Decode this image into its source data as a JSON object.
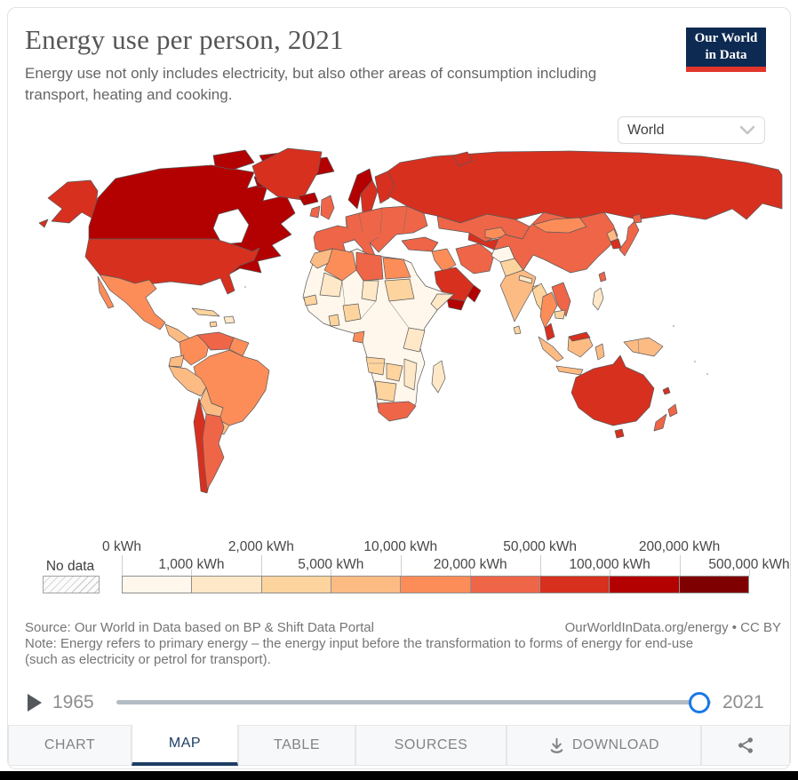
{
  "header": {
    "title": "Energy use per person, 2021",
    "subtitle": "Energy use not only includes electricity, but also other areas of consumption including transport, heating and cooking.",
    "logo": {
      "line1": "Our World",
      "line2": "in Data"
    }
  },
  "brand_colors": {
    "logo_navy": "#0d2a52",
    "logo_red": "#e0362c",
    "active_tab_navy": "#1d3d63",
    "slider_handle_blue": "#1a78e6"
  },
  "controls": {
    "entity_dropdown": {
      "value": "World"
    }
  },
  "chart_data": {
    "type": "choropleth_map",
    "title": "Energy use per person, 2021",
    "unit": "kWh",
    "year_shown": 2021,
    "projection": "World",
    "no_data_label": "No data",
    "legend_labels": [
      "0 kWh",
      "1,000 kWh",
      "2,000 kWh",
      "5,000 kWh",
      "10,000 kWh",
      "20,000 kWh",
      "50,000 kWh",
      "100,000 kWh",
      "200,000 kWh",
      "500,000 kWh"
    ],
    "legend_colors": [
      "#fff7ec",
      "#fee8c8",
      "#fdd49e",
      "#fdbb84",
      "#fc8d59",
      "#ef6548",
      "#d7301f",
      "#b30000",
      "#7f0000"
    ],
    "regions": {
      "usa": "#d7301f",
      "canada": "#b30000",
      "arctic-canada": "#b30000",
      "greenland": "#d7301f",
      "iceland": "#b30000",
      "mexico": "#fc8d59",
      "central-america": "#fdbb84",
      "cuba": "#fdd49e",
      "hispaniola": "#fee8c8",
      "jamaica": "#fdd49e",
      "colombia": "#fc8d59",
      "venezuela": "#ef6548",
      "guyanas": "#fc8d59",
      "ecuador": "#fdbb84",
      "peru": "#fdbb84",
      "brazil": "#fc8d59",
      "bolivia": "#fdbb84",
      "paraguay": "#fdbb84",
      "chile": "#d7301f",
      "argentina": "#ef6548",
      "uk": "#ef6548",
      "ireland": "#ef6548",
      "norway": "#b30000",
      "sweden": "#d7301f",
      "finland": "#d7301f",
      "europe-mainland": "#ef6548",
      "russia": "#d7301f",
      "novaya-zemlya": "#d7301f",
      "kazakhstan": "#ef6548",
      "turkey": "#ef6548",
      "iraq-syria": "#fc8d59",
      "saudi-arabia": "#d7301f",
      "yemen": "#b30000",
      "oman": "#b30000",
      "iran": "#ef6548",
      "turkmenistan": "#d7301f",
      "uzbekistan": "#fc8d59",
      "afghanistan": "#fff7ec",
      "pakistan": "#fdd49e",
      "india": "#fdbb84",
      "sri-lanka": "#fdd49e",
      "nepal": "#fee8c8",
      "bangladesh": "#fdd49e",
      "china": "#ef6548",
      "mongolia": "#fc8d59",
      "north-korea": "#fdbb84",
      "south-korea": "#d7301f",
      "japan": "#ef6548",
      "taiwan": "#ef6548",
      "myanmar": "#fdd49e",
      "thailand": "#fc8d59",
      "vietnam": "#ef6548",
      "cambodia": "#fdd49e",
      "malaysia": "#d7301f",
      "indonesia": "#fdbb84",
      "borneo-malaysia": "#d7301f",
      "philippines": "#fee8c8",
      "papua-new-guinea": "#fdbb84",
      "australia": "#d7301f",
      "new-zealand": "#ef6548",
      "new-caledonia": "#d7301f",
      "africa-other": "#fff7ec",
      "morocco": "#fdbb84",
      "algeria": "#fc8d59",
      "libya": "#ef6548",
      "egypt": "#fc8d59",
      "mali": "#fee8c8",
      "chad": "#fee8c8",
      "sudan": "#fdd49e",
      "senegal": "#fdd49e",
      "nigeria": "#fdd49e",
      "ghana": "#fdd49e",
      "somalia": "#fee8c8",
      "kenya-tanzania": "#fee8c8",
      "gabon": "#fc8d59",
      "angola": "#fdd49e",
      "zambia": "#fdd49e",
      "namibia-botswana": "#fdd49e",
      "mozambique": "#fee8c8",
      "south-africa": "#ef6548",
      "madagascar": "#fee8c8"
    }
  },
  "footer": {
    "source": "Source: Our World in Data based on BP & Shift Data Portal",
    "attribution": "OurWorldInData.org/energy • CC BY",
    "note": "Note: Energy refers to primary energy – the energy input before the transformation to forms of energy for end-use (such as electricity or petrol for transport)."
  },
  "timeline": {
    "start_year": "1965",
    "end_year": "2021"
  },
  "tabs": {
    "chart": "CHART",
    "map": "MAP",
    "table": "TABLE",
    "sources": "SOURCES",
    "download": "DOWNLOAD"
  }
}
